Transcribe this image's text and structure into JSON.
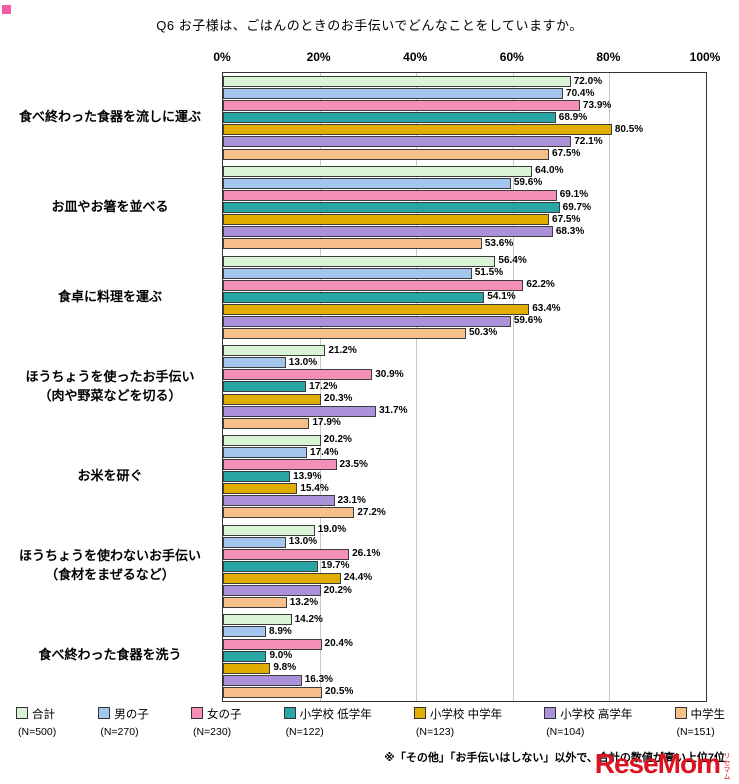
{
  "page": {
    "title": "Q6 お子様は、ごはんのときのお手伝いでどんなことをしていますか。",
    "footnote": "※「その他」「お手伝いはしない」以外で、合計の数値が高い上位7位",
    "logo": {
      "text": "ReseMom",
      "ruby": "リセマム"
    }
  },
  "chart_data": {
    "type": "bar",
    "orientation": "horizontal",
    "title": "Q6 お子様は、ごはんのときのお手伝いでどんなことをしていますか。",
    "grid": true,
    "legend_position": "bottom",
    "x_axis": {
      "min": 0,
      "max": 100,
      "ticks": [
        "0%",
        "20%",
        "40%",
        "60%",
        "80%",
        "100%"
      ]
    },
    "bar_border_color": "#3c3c3c",
    "value_label_format": "{value}%",
    "categories": [
      "食べ終わった食器を流しに運ぶ",
      "お皿やお箸を並べる",
      "食卓に料理を運ぶ",
      "ほうちょうを使ったお手伝い\n（肉や野菜などを切る）",
      "お米を研ぐ",
      "ほうちょうを使わないお手伝い\n（食材をまぜるなど）",
      "食べ終わった食器を洗う"
    ],
    "series": [
      {
        "name": "合計",
        "n": "(N=500)",
        "color": "#d8f4d4",
        "values": [
          72.0,
          64.0,
          56.4,
          21.2,
          20.2,
          19.0,
          14.2
        ]
      },
      {
        "name": "男の子",
        "n": "(N=270)",
        "color": "#a3c6ef",
        "values": [
          70.4,
          59.6,
          51.5,
          13.0,
          17.4,
          13.0,
          8.9
        ]
      },
      {
        "name": "女の子",
        "n": "(N=230)",
        "color": "#f48fb8",
        "values": [
          73.9,
          69.1,
          62.2,
          30.9,
          23.5,
          26.1,
          20.4
        ]
      },
      {
        "name": "小学校 低学年",
        "n": "(N=122)",
        "color": "#2aa5a5",
        "values": [
          68.9,
          69.7,
          54.1,
          17.2,
          13.9,
          19.7,
          9.0
        ]
      },
      {
        "name": "小学校 中学年",
        "n": "(N=123)",
        "color": "#e0ae00",
        "values": [
          80.5,
          67.5,
          63.4,
          20.3,
          15.4,
          24.4,
          9.8
        ]
      },
      {
        "name": "小学校 高学年",
        "n": "(N=104)",
        "color": "#ab90da",
        "values": [
          72.1,
          68.3,
          59.6,
          31.7,
          23.1,
          20.2,
          16.3
        ]
      },
      {
        "name": "中学生",
        "n": "(N=151)",
        "color": "#f7c08a",
        "values": [
          67.5,
          53.6,
          50.3,
          17.9,
          27.2,
          13.2,
          20.5
        ]
      }
    ]
  }
}
